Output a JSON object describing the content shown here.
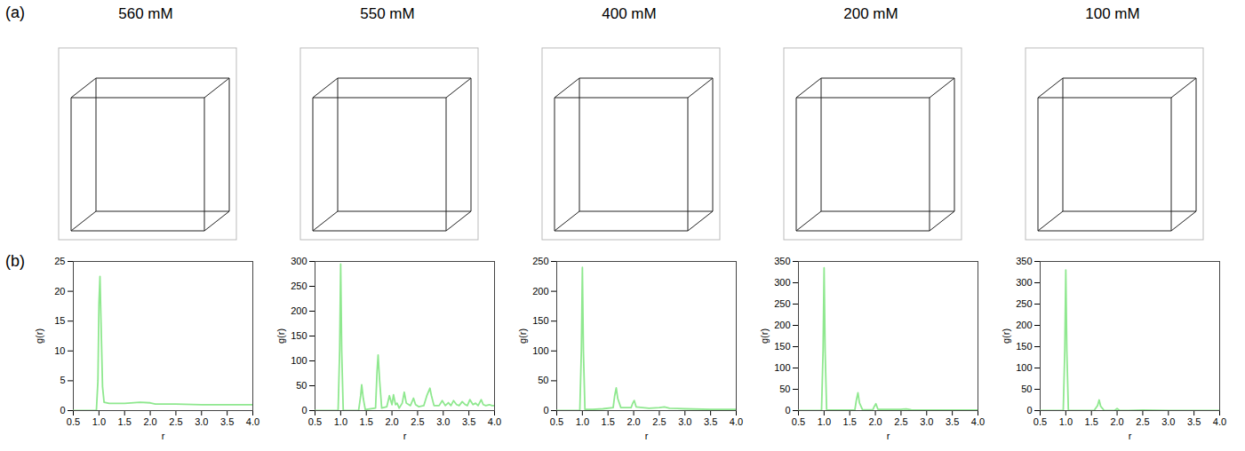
{
  "panel_labels": [
    "(a)",
    "(b)"
  ],
  "chart_data": [
    {
      "type": "line",
      "title": "560 mM",
      "xlabel": "r",
      "ylabel": "g(r)",
      "color": "#8fe88f",
      "x": [
        0.5,
        0.9,
        0.95,
        0.98,
        1.0,
        1.02,
        1.04,
        1.07,
        1.1,
        1.2,
        1.5,
        1.8,
        2.0,
        2.1,
        2.5,
        3.0,
        3.5,
        4.0
      ],
      "values": [
        0,
        0,
        0,
        5,
        18,
        22.5,
        15,
        4,
        1.4,
        1.2,
        1.2,
        1.4,
        1.3,
        1.1,
        1.1,
        1.0,
        1.0,
        1.0
      ],
      "xlim": [
        0.5,
        4
      ],
      "xticks": [
        0.5,
        1,
        1.5,
        2,
        2.5,
        3,
        3.5,
        4
      ],
      "ylim": [
        0,
        25
      ],
      "yticks": [
        0,
        5,
        10,
        15,
        20,
        25
      ]
    },
    {
      "type": "line",
      "title": "550 mM",
      "xlabel": "r",
      "ylabel": "g(r)",
      "color": "#8fe88f",
      "x": [
        0.5,
        0.95,
        0.98,
        1.0,
        1.02,
        1.05,
        1.35,
        1.39,
        1.41,
        1.44,
        1.48,
        1.68,
        1.71,
        1.73,
        1.76,
        1.8,
        1.9,
        1.95,
        2.0,
        2.03,
        2.07,
        2.1,
        2.14,
        2.2,
        2.24,
        2.28,
        2.36,
        2.42,
        2.46,
        2.52,
        2.62,
        2.68,
        2.74,
        2.77,
        2.82,
        2.92,
        2.98,
        3.04,
        3.1,
        3.15,
        3.2,
        3.26,
        3.31,
        3.37,
        3.43,
        3.47,
        3.52,
        3.58,
        3.63,
        3.68,
        3.74,
        3.78,
        3.83,
        3.9,
        3.95,
        4.0
      ],
      "values": [
        0,
        0,
        120,
        295,
        120,
        0,
        0,
        30,
        52,
        25,
        2,
        5,
        80,
        112,
        60,
        5,
        8,
        30,
        12,
        32,
        12,
        15,
        5,
        15,
        37,
        15,
        10,
        25,
        12,
        8,
        10,
        30,
        45,
        30,
        10,
        10,
        20,
        10,
        16,
        10,
        20,
        12,
        10,
        18,
        12,
        10,
        22,
        12,
        15,
        10,
        22,
        12,
        10,
        12,
        10,
        10
      ],
      "xlim": [
        0.5,
        4
      ],
      "xticks": [
        0.5,
        1,
        1.5,
        2,
        2.5,
        3,
        3.5,
        4
      ],
      "ylim": [
        0,
        300
      ],
      "yticks": [
        0,
        50,
        100,
        150,
        200,
        250,
        300
      ]
    },
    {
      "type": "line",
      "title": "400 mM",
      "xlabel": "r",
      "ylabel": "g(r)",
      "color": "#8fe88f",
      "x": [
        0.5,
        0.95,
        0.98,
        1.0,
        1.02,
        1.05,
        1.2,
        1.4,
        1.6,
        1.63,
        1.66,
        1.69,
        1.75,
        1.95,
        1.98,
        2.01,
        2.05,
        2.3,
        2.5,
        2.6,
        2.7,
        3.0,
        3.5,
        4.0
      ],
      "values": [
        0,
        0,
        100,
        240,
        100,
        2,
        2,
        3,
        5,
        25,
        38,
        20,
        5,
        5,
        12,
        17,
        6,
        4,
        5,
        6,
        4,
        3,
        2,
        2
      ],
      "xlim": [
        0.5,
        4
      ],
      "xticks": [
        0.5,
        1,
        1.5,
        2,
        2.5,
        3,
        3.5,
        4
      ],
      "ylim": [
        0,
        250
      ],
      "yticks": [
        0,
        50,
        100,
        150,
        200,
        250
      ]
    },
    {
      "type": "line",
      "title": "200 mM",
      "xlabel": "r",
      "ylabel": "g(r)",
      "color": "#8fe88f",
      "x": [
        0.5,
        0.95,
        0.98,
        1.0,
        1.02,
        1.05,
        1.5,
        1.6,
        1.63,
        1.66,
        1.69,
        1.75,
        1.95,
        1.98,
        2.01,
        2.05,
        2.5,
        2.6,
        2.7,
        3.0,
        3.5,
        4.0
      ],
      "values": [
        0,
        0,
        140,
        335,
        140,
        1,
        1,
        2,
        25,
        42,
        18,
        2,
        2,
        10,
        16,
        3,
        3,
        4,
        2,
        1,
        1,
        1
      ],
      "xlim": [
        0.5,
        4
      ],
      "xticks": [
        0.5,
        1,
        1.5,
        2,
        2.5,
        3,
        3.5,
        4
      ],
      "ylim": [
        0,
        350
      ],
      "yticks": [
        0,
        50,
        100,
        150,
        200,
        250,
        300,
        350
      ]
    },
    {
      "type": "line",
      "title": "100 mM",
      "xlabel": "r",
      "ylabel": "g(r)",
      "color": "#8fe88f",
      "x": [
        0.5,
        0.95,
        0.98,
        1.0,
        1.02,
        1.05,
        1.55,
        1.62,
        1.65,
        1.68,
        1.75,
        1.95,
        2.0,
        2.05,
        2.5,
        3.0,
        3.5,
        4.0
      ],
      "values": [
        0,
        0,
        140,
        330,
        140,
        0,
        0,
        12,
        25,
        10,
        0,
        0,
        5,
        0,
        1,
        0,
        0,
        0
      ],
      "xlim": [
        0.5,
        4
      ],
      "xticks": [
        0.5,
        1,
        1.5,
        2,
        2.5,
        3,
        3.5,
        4
      ],
      "ylim": [
        0,
        350
      ],
      "yticks": [
        0,
        50,
        100,
        150,
        200,
        250,
        300,
        350
      ]
    }
  ]
}
